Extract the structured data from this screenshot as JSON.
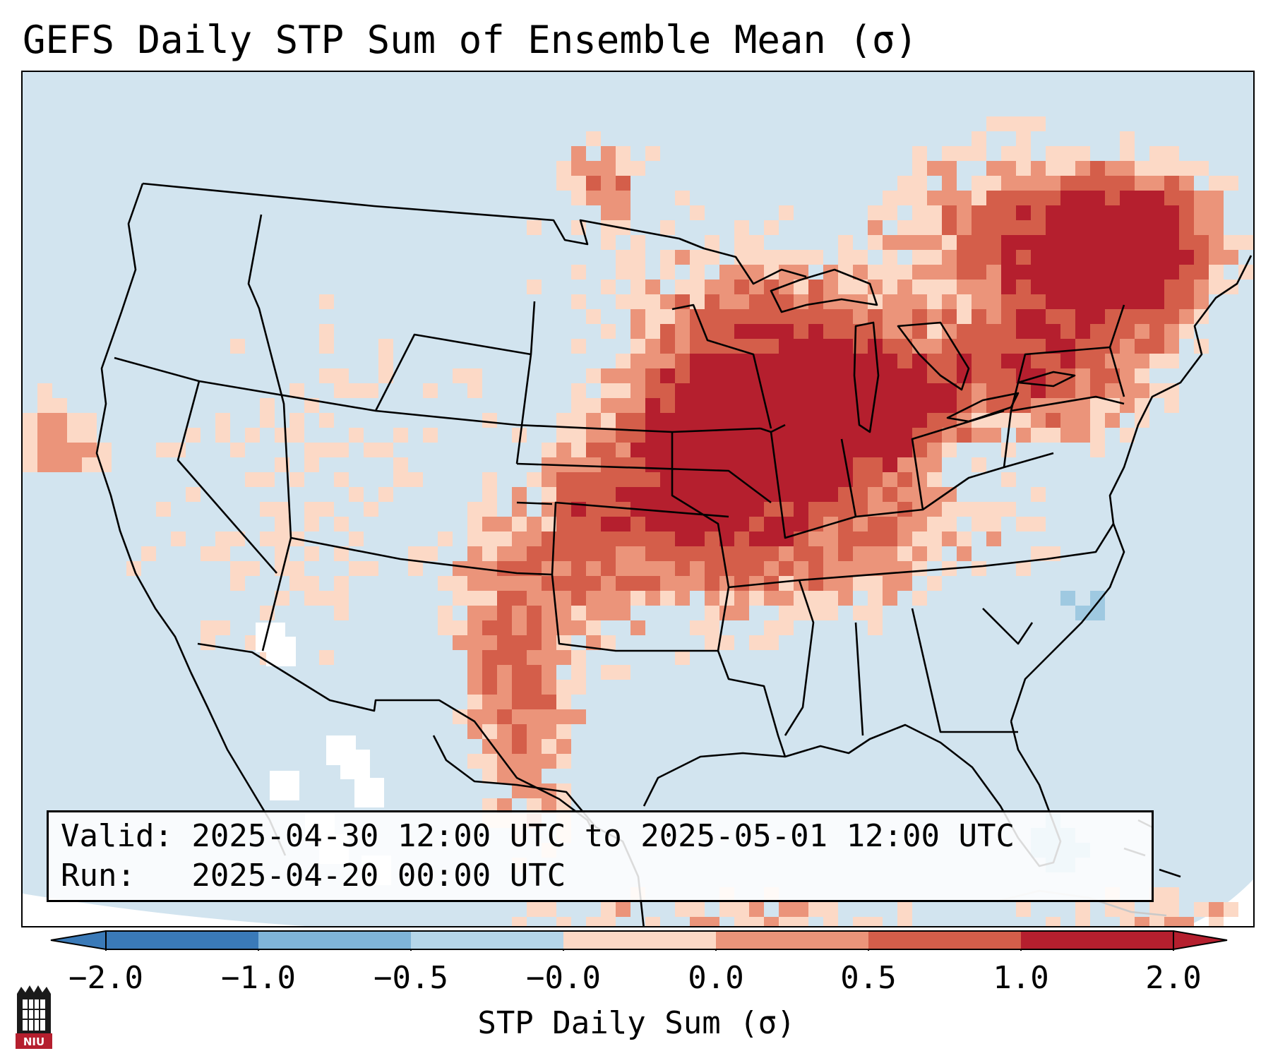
{
  "title": "GEFS Daily STP Sum of Ensemble Mean (σ)",
  "info_box": {
    "valid_line": "Valid: 2025-04-30 12:00 UTC to 2025-05-01 12:00 UTC",
    "run_line": "Run:   2025-04-20 00:00 UTC"
  },
  "colorbar": {
    "label": "STP Daily Sum (σ)",
    "ticks": [
      "−2.0",
      "−1.0",
      "−0.5",
      "−0.0",
      "0.0",
      "0.5",
      "1.0",
      "2.0"
    ],
    "colors": [
      "#3a7ab8",
      "#7fb4d8",
      "#b5d6ea",
      "#f6f8fb",
      "#fcd9c6",
      "#eb947a",
      "#d45e4a",
      "#b51f2e"
    ],
    "extend": "both"
  },
  "map": {
    "background_category": "#d2e4ef",
    "domain": "Continental United States",
    "categories": {
      "strong_positive": "#b51f2e",
      "positive": "#d45e4a",
      "moderate_positive": "#eb947a",
      "weak_positive": "#fcd9c6",
      "near_zero": "#ffffff",
      "weak_negative": "#9fc9e1"
    }
  },
  "logo": {
    "text": "NIU",
    "icon": "niu-university-logo"
  }
}
